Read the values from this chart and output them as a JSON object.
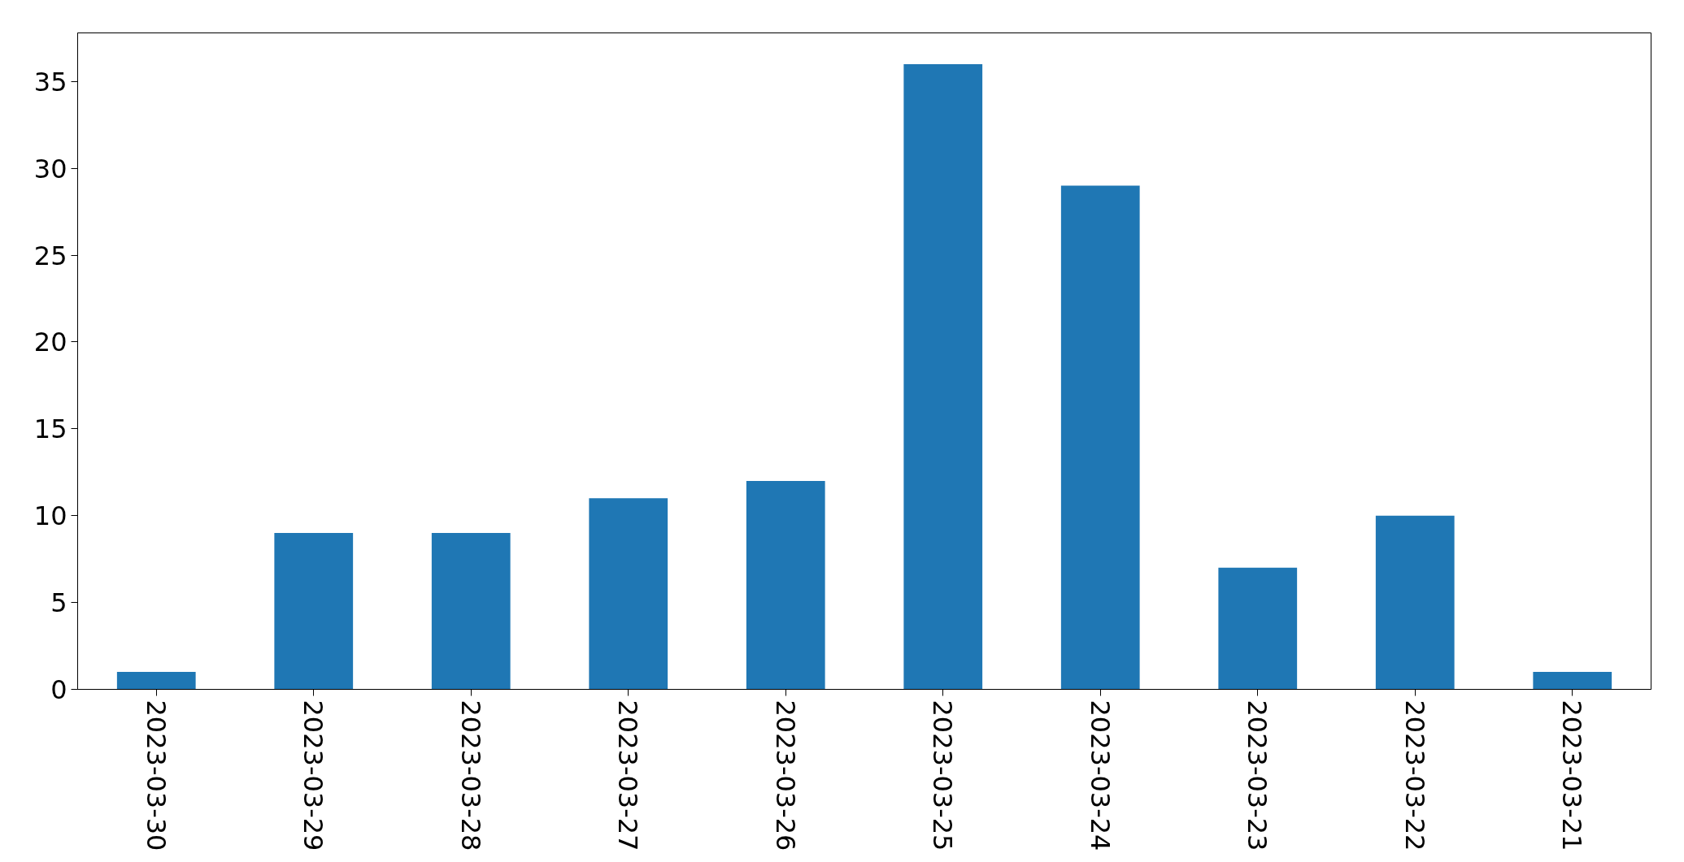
{
  "chart_data": {
    "type": "bar",
    "categories": [
      "2023-03-30",
      "2023-03-29",
      "2023-03-28",
      "2023-03-27",
      "2023-03-26",
      "2023-03-25",
      "2023-03-24",
      "2023-03-23",
      "2023-03-22",
      "2023-03-21"
    ],
    "values": [
      1,
      9,
      9,
      11,
      12,
      36,
      29,
      7,
      10,
      1
    ],
    "color": "#1f77b4",
    "ylim": [
      0,
      37.8
    ],
    "yticks": [
      0,
      5,
      10,
      15,
      20,
      25,
      30,
      35
    ],
    "grid": false
  }
}
